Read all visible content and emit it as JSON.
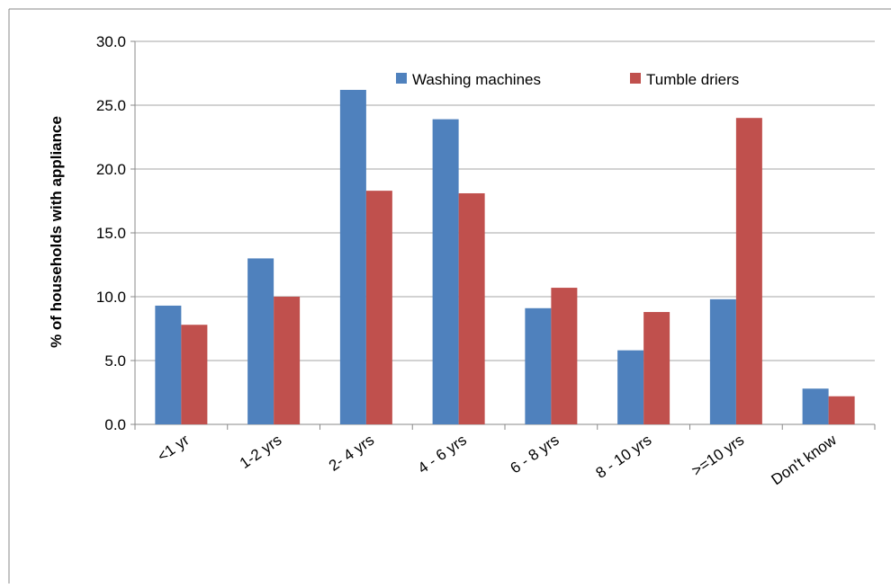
{
  "chart_data": {
    "type": "bar",
    "y_label": "% of households with appliance",
    "categories": [
      "<1 yr",
      "1-2 yrs",
      "2- 4 yrs",
      "4 - 6 yrs",
      "6 - 8 yrs",
      "8 - 10 yrs",
      ">=10 yrs",
      "Don't know"
    ],
    "series": [
      {
        "name": "Washing machines",
        "color": "#4f81bd",
        "values": [
          9.3,
          13.0,
          26.2,
          23.9,
          9.1,
          5.8,
          9.8,
          2.8
        ]
      },
      {
        "name": "Tumble driers",
        "color": "#c0504d",
        "values": [
          7.8,
          10.0,
          18.3,
          18.1,
          10.7,
          8.8,
          24.0,
          2.2
        ]
      }
    ],
    "ylim": [
      0,
      30
    ],
    "yticks": [
      {
        "value": 0,
        "label": "0.0"
      },
      {
        "value": 5,
        "label": "5.0"
      },
      {
        "value": 10,
        "label": "10.0"
      },
      {
        "value": 15,
        "label": "15.0"
      },
      {
        "value": 20,
        "label": "20.0"
      },
      {
        "value": 25,
        "label": "25.0"
      },
      {
        "value": 30,
        "label": "30.0"
      }
    ],
    "grid": true
  }
}
